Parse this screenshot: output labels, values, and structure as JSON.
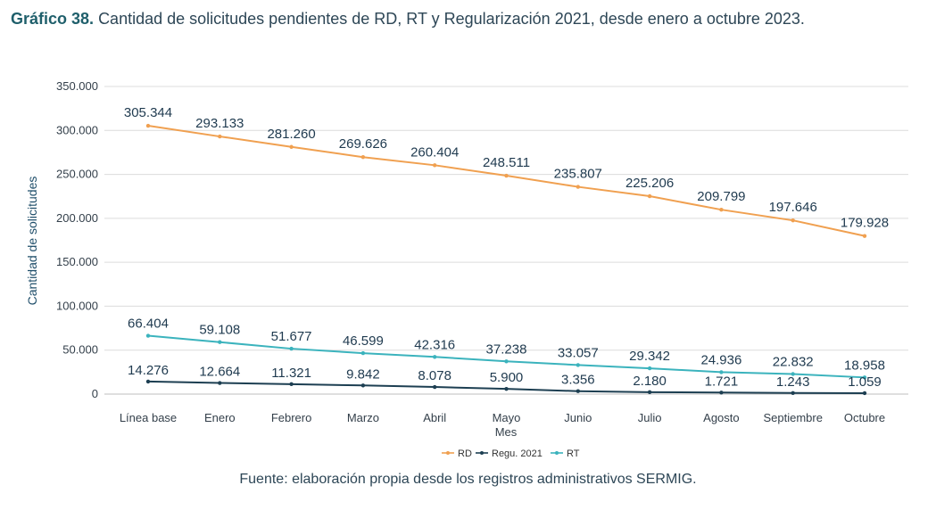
{
  "caption": {
    "number": "Gráfico 38.",
    "text": "Cantidad de solicitudes pendientes de RD, RT y Regularización 2021, desde enero a octubre 2023."
  },
  "source": "Fuente: elaboración propia desde los registros administrativos SERMIG.",
  "chart_data": {
    "type": "line",
    "xlabel": "Mes",
    "ylabel": "Cantidad de solicitudes",
    "ylim": [
      0,
      350000
    ],
    "yticks": [
      "0",
      "50.000",
      "100.000",
      "150.000",
      "200.000",
      "250.000",
      "300.000",
      "350.000"
    ],
    "ytick_values": [
      0,
      50000,
      100000,
      150000,
      200000,
      250000,
      300000,
      350000
    ],
    "grid": true,
    "legend_position": "bottom",
    "categories": [
      "Línea base",
      "Enero",
      "Febrero",
      "Marzo",
      "Abril",
      "Mayo",
      "Junio",
      "Julio",
      "Agosto",
      "Septiembre",
      "Octubre"
    ],
    "series": [
      {
        "name": "RD",
        "color": "#f0a050",
        "values": [
          305344,
          293133,
          281260,
          269626,
          260404,
          248511,
          235807,
          225206,
          209799,
          197646,
          179928
        ],
        "labels": [
          "305.344",
          "293.133",
          "281.260",
          "269.626",
          "260.404",
          "248.511",
          "235.807",
          "225.206",
          "209.799",
          "197.646",
          "179.928"
        ]
      },
      {
        "name": "Regu. 2021",
        "color": "#1d3f52",
        "values": [
          14276,
          12664,
          11321,
          9842,
          8078,
          5900,
          3356,
          2180,
          1721,
          1243,
          1059
        ],
        "labels": [
          "14.276",
          "12.664",
          "11.321",
          "9.842",
          "8.078",
          "5.900",
          "3.356",
          "2.180",
          "1.721",
          "1.243",
          "1.059"
        ]
      },
      {
        "name": "RT",
        "color": "#3bb3bd",
        "values": [
          66404,
          59108,
          51677,
          46599,
          42316,
          37238,
          33057,
          29342,
          24936,
          22832,
          18958
        ],
        "labels": [
          "66.404",
          "59.108",
          "51.677",
          "46.599",
          "42.316",
          "37.238",
          "33.057",
          "29.342",
          "24.936",
          "22.832",
          "18.958"
        ]
      }
    ]
  }
}
